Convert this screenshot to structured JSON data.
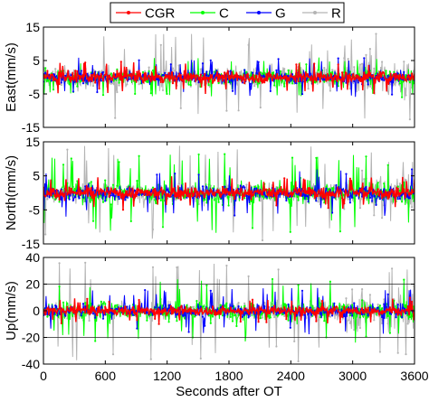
{
  "chart_data": [
    {
      "type": "line",
      "ylabel": "East(mm/s)",
      "ylim": [
        -15,
        15
      ],
      "yticks": [
        -15,
        -5,
        5,
        15
      ],
      "xlim": [
        0,
        3600
      ],
      "grid": false,
      "reference_lines": [
        -15,
        15
      ],
      "series": [
        {
          "name": "CGR",
          "color": "#ff0000",
          "amplitude_typical": 3,
          "amplitude_max": 5
        },
        {
          "name": "C",
          "color": "#00ff00",
          "amplitude_typical": 4,
          "amplitude_max": 6
        },
        {
          "name": "G",
          "color": "#0000ff",
          "amplitude_typical": 3.5,
          "amplitude_max": 6
        },
        {
          "name": "R",
          "color": "#b4b4b4",
          "amplitude_typical": 6,
          "amplitude_max": 13
        }
      ]
    },
    {
      "type": "line",
      "ylabel": "North(mm/s)",
      "ylim": [
        -15,
        15
      ],
      "yticks": [
        -15,
        -5,
        5,
        15
      ],
      "xlim": [
        0,
        3600
      ],
      "grid": false,
      "reference_lines": [
        -15,
        15
      ],
      "series": [
        {
          "name": "CGR",
          "color": "#ff0000",
          "amplitude_typical": 3,
          "amplitude_max": 5
        },
        {
          "name": "C",
          "color": "#00ff00",
          "amplitude_typical": 6,
          "amplitude_max": 12
        },
        {
          "name": "G",
          "color": "#0000ff",
          "amplitude_typical": 4,
          "amplitude_max": 7
        },
        {
          "name": "R",
          "color": "#b4b4b4",
          "amplitude_typical": 5,
          "amplitude_max": 14
        }
      ]
    },
    {
      "type": "line",
      "ylabel": "Up(mm/s)",
      "ylim": [
        -40,
        40
      ],
      "yticks": [
        -40,
        -20,
        0,
        20,
        40
      ],
      "xlim": [
        0,
        3600
      ],
      "xticks": [
        0,
        600,
        1200,
        1800,
        2400,
        3000,
        3600
      ],
      "xlabel": "Seconds after OT",
      "grid": false,
      "reference_lines": [
        -20,
        20
      ],
      "series": [
        {
          "name": "CGR",
          "color": "#ff0000",
          "amplitude_typical": 6,
          "amplitude_max": 10
        },
        {
          "name": "C",
          "color": "#00ff00",
          "amplitude_typical": 13,
          "amplitude_max": 24
        },
        {
          "name": "G",
          "color": "#0000ff",
          "amplitude_typical": 9,
          "amplitude_max": 18
        },
        {
          "name": "R",
          "color": "#b4b4b4",
          "amplitude_typical": 12,
          "amplitude_max": 38
        }
      ]
    }
  ],
  "legend": {
    "placement": "top-center",
    "entries": [
      {
        "label": "CGR",
        "color": "#ff0000"
      },
      {
        "label": "C",
        "color": "#00ff00"
      },
      {
        "label": "G",
        "color": "#0000ff"
      },
      {
        "label": "R",
        "color": "#b4b4b4"
      }
    ]
  }
}
